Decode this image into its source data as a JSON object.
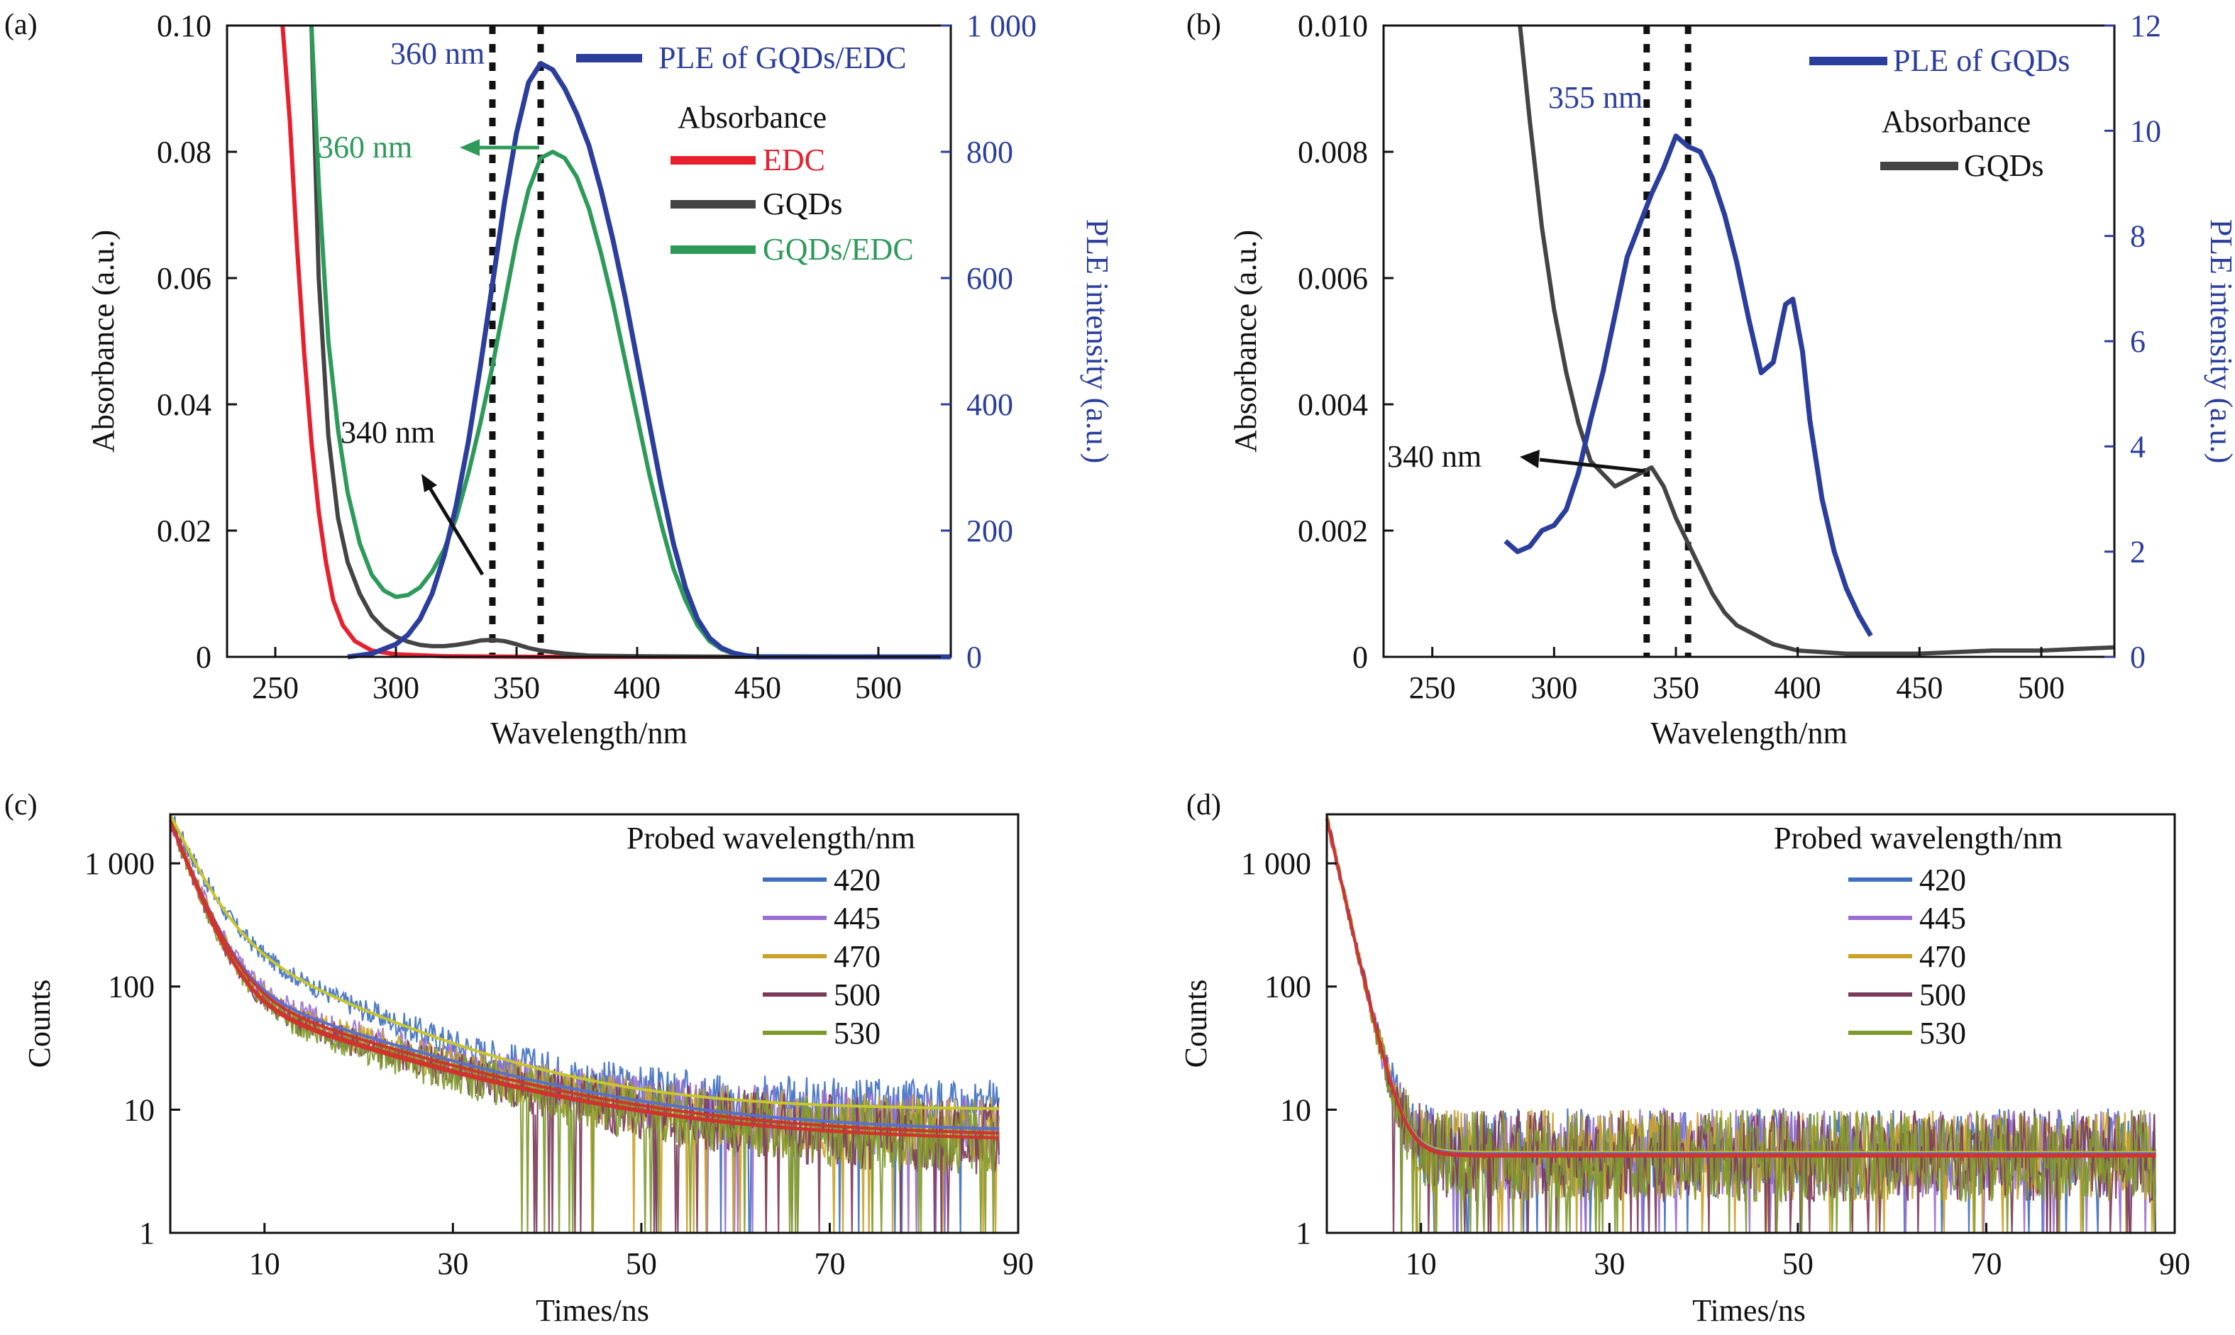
{
  "chart_data": [
    {
      "panel": "(a)",
      "type": "line",
      "xlabel": "Wavelength/nm",
      "ylabel": "Absorbance (a.u.)",
      "ylabel_right": "PLE intensity (a.u.)",
      "xlim": [
        230,
        530
      ],
      "ylim": [
        0,
        0.1
      ],
      "ylim_right": [
        0,
        1000
      ],
      "xticks": [
        250,
        300,
        350,
        400,
        450,
        500
      ],
      "yticks": [
        0,
        0.02,
        0.04,
        0.06,
        0.08,
        0.1
      ],
      "yticks_right": [
        0,
        200,
        400,
        600,
        800,
        1000
      ],
      "xtick_labels": [
        "250",
        "300",
        "350",
        "400",
        "450",
        "500"
      ],
      "ytick_labels": [
        "0",
        "0.02",
        "0.04",
        "0.06",
        "0.08",
        "0.10"
      ],
      "ytick_labels_right": [
        "0",
        "200",
        "400",
        "600",
        "800",
        "1 000"
      ],
      "series": [
        {
          "name": "EDC",
          "axis": "left",
          "color": "#e8202e",
          "x": [
            253,
            256,
            259,
            262,
            265,
            268,
            271,
            274,
            278,
            283,
            290,
            300,
            320,
            360,
            400,
            450,
            530
          ],
          "y": [
            0.1,
            0.085,
            0.065,
            0.048,
            0.034,
            0.023,
            0.015,
            0.009,
            0.005,
            0.0025,
            0.001,
            0.0004,
            0.0001,
            0,
            0,
            0,
            0
          ]
        },
        {
          "name": "GQDs",
          "axis": "left",
          "color": "#444444",
          "x": [
            265,
            268,
            272,
            276,
            280,
            285,
            290,
            295,
            300,
            305,
            310,
            315,
            320,
            325,
            330,
            335,
            340,
            345,
            350,
            355,
            360,
            370,
            380,
            400,
            450,
            530
          ],
          "y": [
            0.1,
            0.06,
            0.035,
            0.022,
            0.015,
            0.01,
            0.0065,
            0.0045,
            0.0032,
            0.0024,
            0.0019,
            0.0017,
            0.0017,
            0.0019,
            0.0022,
            0.0026,
            0.0027,
            0.0025,
            0.002,
            0.0014,
            0.001,
            0.0005,
            0.0002,
            0.0001,
            0,
            0
          ]
        },
        {
          "name": "GQDs/EDC",
          "axis": "left",
          "color": "#2e9a5a",
          "x": [
            265,
            268,
            272,
            276,
            280,
            285,
            290,
            295,
            300,
            305,
            310,
            315,
            320,
            325,
            330,
            335,
            340,
            345,
            350,
            355,
            360,
            365,
            370,
            375,
            380,
            385,
            390,
            395,
            400,
            405,
            410,
            415,
            420,
            425,
            430,
            435,
            440,
            445,
            450,
            530
          ],
          "y": [
            0.1,
            0.075,
            0.05,
            0.036,
            0.026,
            0.018,
            0.013,
            0.0105,
            0.0095,
            0.0098,
            0.011,
            0.0135,
            0.017,
            0.022,
            0.029,
            0.037,
            0.046,
            0.056,
            0.066,
            0.074,
            0.079,
            0.08,
            0.079,
            0.076,
            0.071,
            0.064,
            0.056,
            0.047,
            0.038,
            0.029,
            0.021,
            0.014,
            0.009,
            0.005,
            0.0025,
            0.0012,
            0.0005,
            0.0002,
            0.0001,
            0
          ]
        },
        {
          "name": "PLE of GQDs/EDC",
          "axis": "right",
          "color": "#2b3e9c",
          "x": [
            280,
            290,
            300,
            305,
            310,
            315,
            320,
            325,
            330,
            335,
            340,
            345,
            350,
            355,
            360,
            365,
            370,
            375,
            380,
            385,
            390,
            395,
            400,
            405,
            410,
            415,
            420,
            425,
            430,
            435,
            440,
            445,
            450,
            530
          ],
          "y": [
            0,
            5,
            20,
            35,
            60,
            100,
            160,
            240,
            340,
            460,
            590,
            720,
            830,
            910,
            940,
            930,
            900,
            860,
            810,
            740,
            660,
            570,
            470,
            370,
            270,
            180,
            110,
            60,
            30,
            14,
            6,
            2,
            0,
            0
          ]
        }
      ],
      "legend_title": "Absorbance",
      "legend": [
        "PLE of GQDs/EDC",
        "EDC",
        "GQDs",
        "GQDs/EDC"
      ],
      "legend_colors": [
        "#2b3e9c",
        "#e8202e",
        "#444444",
        "#2e9a5a"
      ],
      "annotations": [
        "360 nm",
        "360 nm",
        "340 nm"
      ],
      "vlines": [
        340,
        360
      ]
    },
    {
      "panel": "(b)",
      "type": "line",
      "xlabel": "Wavelength/nm",
      "ylabel": "Absorbance (a.u.)",
      "ylabel_right": "PLE intensity (a.u.)",
      "xlim": [
        230,
        530
      ],
      "ylim": [
        0,
        0.01
      ],
      "ylim_right": [
        0,
        12
      ],
      "xticks": [
        250,
        300,
        350,
        400,
        450,
        500
      ],
      "yticks": [
        0,
        0.002,
        0.004,
        0.006,
        0.008,
        0.01
      ],
      "yticks_right": [
        0,
        2,
        4,
        6,
        8,
        10,
        12
      ],
      "xtick_labels": [
        "250",
        "300",
        "350",
        "400",
        "450",
        "500"
      ],
      "ytick_labels": [
        "0",
        "0.002",
        "0.004",
        "0.006",
        "0.008",
        "0.010"
      ],
      "ytick_labels_right": [
        "0",
        "2",
        "4",
        "6",
        "8",
        "10",
        "12"
      ],
      "series": [
        {
          "name": "GQDs",
          "axis": "left",
          "color": "#444444",
          "x": [
            286,
            290,
            295,
            300,
            305,
            310,
            315,
            320,
            325,
            330,
            335,
            340,
            345,
            350,
            355,
            360,
            365,
            370,
            375,
            380,
            390,
            400,
            420,
            450,
            480,
            500,
            530
          ],
          "y": [
            0.01,
            0.0085,
            0.0068,
            0.0055,
            0.0045,
            0.0037,
            0.0031,
            0.0029,
            0.0027,
            0.0028,
            0.0029,
            0.003,
            0.0027,
            0.0022,
            0.0018,
            0.0014,
            0.001,
            0.0007,
            0.0005,
            0.0004,
            0.0002,
            0.0001,
            5e-05,
            5e-05,
            0.0001,
            0.0001,
            0.00015
          ]
        },
        {
          "name": "PLE of GQDs",
          "axis": "right",
          "color": "#2b3e9c",
          "x": [
            280,
            285,
            290,
            295,
            300,
            305,
            310,
            315,
            320,
            325,
            330,
            335,
            340,
            345,
            350,
            355,
            360,
            365,
            370,
            375,
            380,
            385,
            390,
            395,
            398,
            402,
            405,
            410,
            415,
            420,
            425,
            430
          ],
          "y": [
            2.2,
            2.0,
            2.1,
            2.4,
            2.5,
            2.8,
            3.5,
            4.5,
            5.4,
            6.5,
            7.6,
            8.2,
            8.8,
            9.3,
            9.9,
            9.7,
            9.6,
            9.1,
            8.4,
            7.5,
            6.4,
            5.4,
            5.6,
            6.7,
            6.8,
            5.8,
            4.5,
            3.0,
            2.0,
            1.3,
            0.8,
            0.4
          ]
        }
      ],
      "legend_title": "Absorbance",
      "legend": [
        "PLE of GQDs",
        "GQDs"
      ],
      "legend_colors": [
        "#2b3e9c",
        "#444444"
      ],
      "annotations": [
        "355 nm",
        "340 nm"
      ],
      "vlines": [
        338,
        355
      ]
    },
    {
      "panel": "(c)",
      "type": "line",
      "scale_y": "log",
      "xlabel": "Times/ns",
      "ylabel": "Counts",
      "xlim": [
        0,
        90
      ],
      "ylim": [
        1,
        2500
      ],
      "xticks": [
        10,
        30,
        50,
        70,
        90
      ],
      "yticks": [
        1,
        10,
        100,
        1000
      ],
      "xtick_labels": [
        "10",
        "30",
        "50",
        "70",
        "90"
      ],
      "ytick_labels": [
        "1",
        "10",
        "100",
        "1 000"
      ],
      "legend_title": "Probed wavelength/nm",
      "series": [
        {
          "name": "420",
          "color": "#3e6fc1",
          "decay": {
            "A1": 2200,
            "t1": 2.5,
            "A2": 300,
            "t2": 12,
            "c": 10
          }
        },
        {
          "name": "445",
          "color": "#9b6fd0",
          "decay": {
            "A1": 2100,
            "t1": 2.2,
            "A2": 120,
            "t2": 16,
            "c": 6.5
          }
        },
        {
          "name": "470",
          "color": "#c9a228",
          "decay": {
            "A1": 2100,
            "t1": 2.2,
            "A2": 110,
            "t2": 16,
            "c": 6
          }
        },
        {
          "name": "500",
          "color": "#7a3b5a",
          "decay": {
            "A1": 2100,
            "t1": 2.1,
            "A2": 100,
            "t2": 16,
            "c": 5.5
          }
        },
        {
          "name": "530",
          "color": "#7f9a2c",
          "decay": {
            "A1": 2100,
            "t1": 2.1,
            "A2": 95,
            "t2": 16,
            "c": 5.5
          }
        }
      ]
    },
    {
      "panel": "(d)",
      "type": "line",
      "scale_y": "log",
      "xlabel": "Times/ns",
      "ylabel": "Counts",
      "xlim": [
        0,
        90
      ],
      "ylim": [
        1,
        2500
      ],
      "xticks": [
        10,
        30,
        50,
        70,
        90
      ],
      "yticks": [
        1,
        10,
        100,
        1000
      ],
      "xtick_labels": [
        "10",
        "30",
        "50",
        "70",
        "90"
      ],
      "ytick_labels": [
        "1",
        "10",
        "100",
        "1 000"
      ],
      "legend_title": "Probed wavelength/nm",
      "series": [
        {
          "name": "420",
          "color": "#3e6fc1",
          "decay": {
            "A1": 2300,
            "t1": 1.3,
            "A2": 0,
            "t2": 10,
            "c": 4.5
          }
        },
        {
          "name": "445",
          "color": "#9b6fd0",
          "decay": {
            "A1": 2300,
            "t1": 1.3,
            "A2": 0,
            "t2": 10,
            "c": 4.4
          }
        },
        {
          "name": "470",
          "color": "#c9a228",
          "decay": {
            "A1": 2300,
            "t1": 1.3,
            "A2": 0,
            "t2": 10,
            "c": 4.3
          }
        },
        {
          "name": "500",
          "color": "#7a3b5a",
          "decay": {
            "A1": 2300,
            "t1": 1.3,
            "A2": 0,
            "t2": 10,
            "c": 4.2
          }
        },
        {
          "name": "530",
          "color": "#7f9a2c",
          "decay": {
            "A1": 2300,
            "t1": 1.3,
            "A2": 0,
            "t2": 10,
            "c": 4.2
          }
        }
      ]
    }
  ],
  "fit_color": "#d0342c"
}
